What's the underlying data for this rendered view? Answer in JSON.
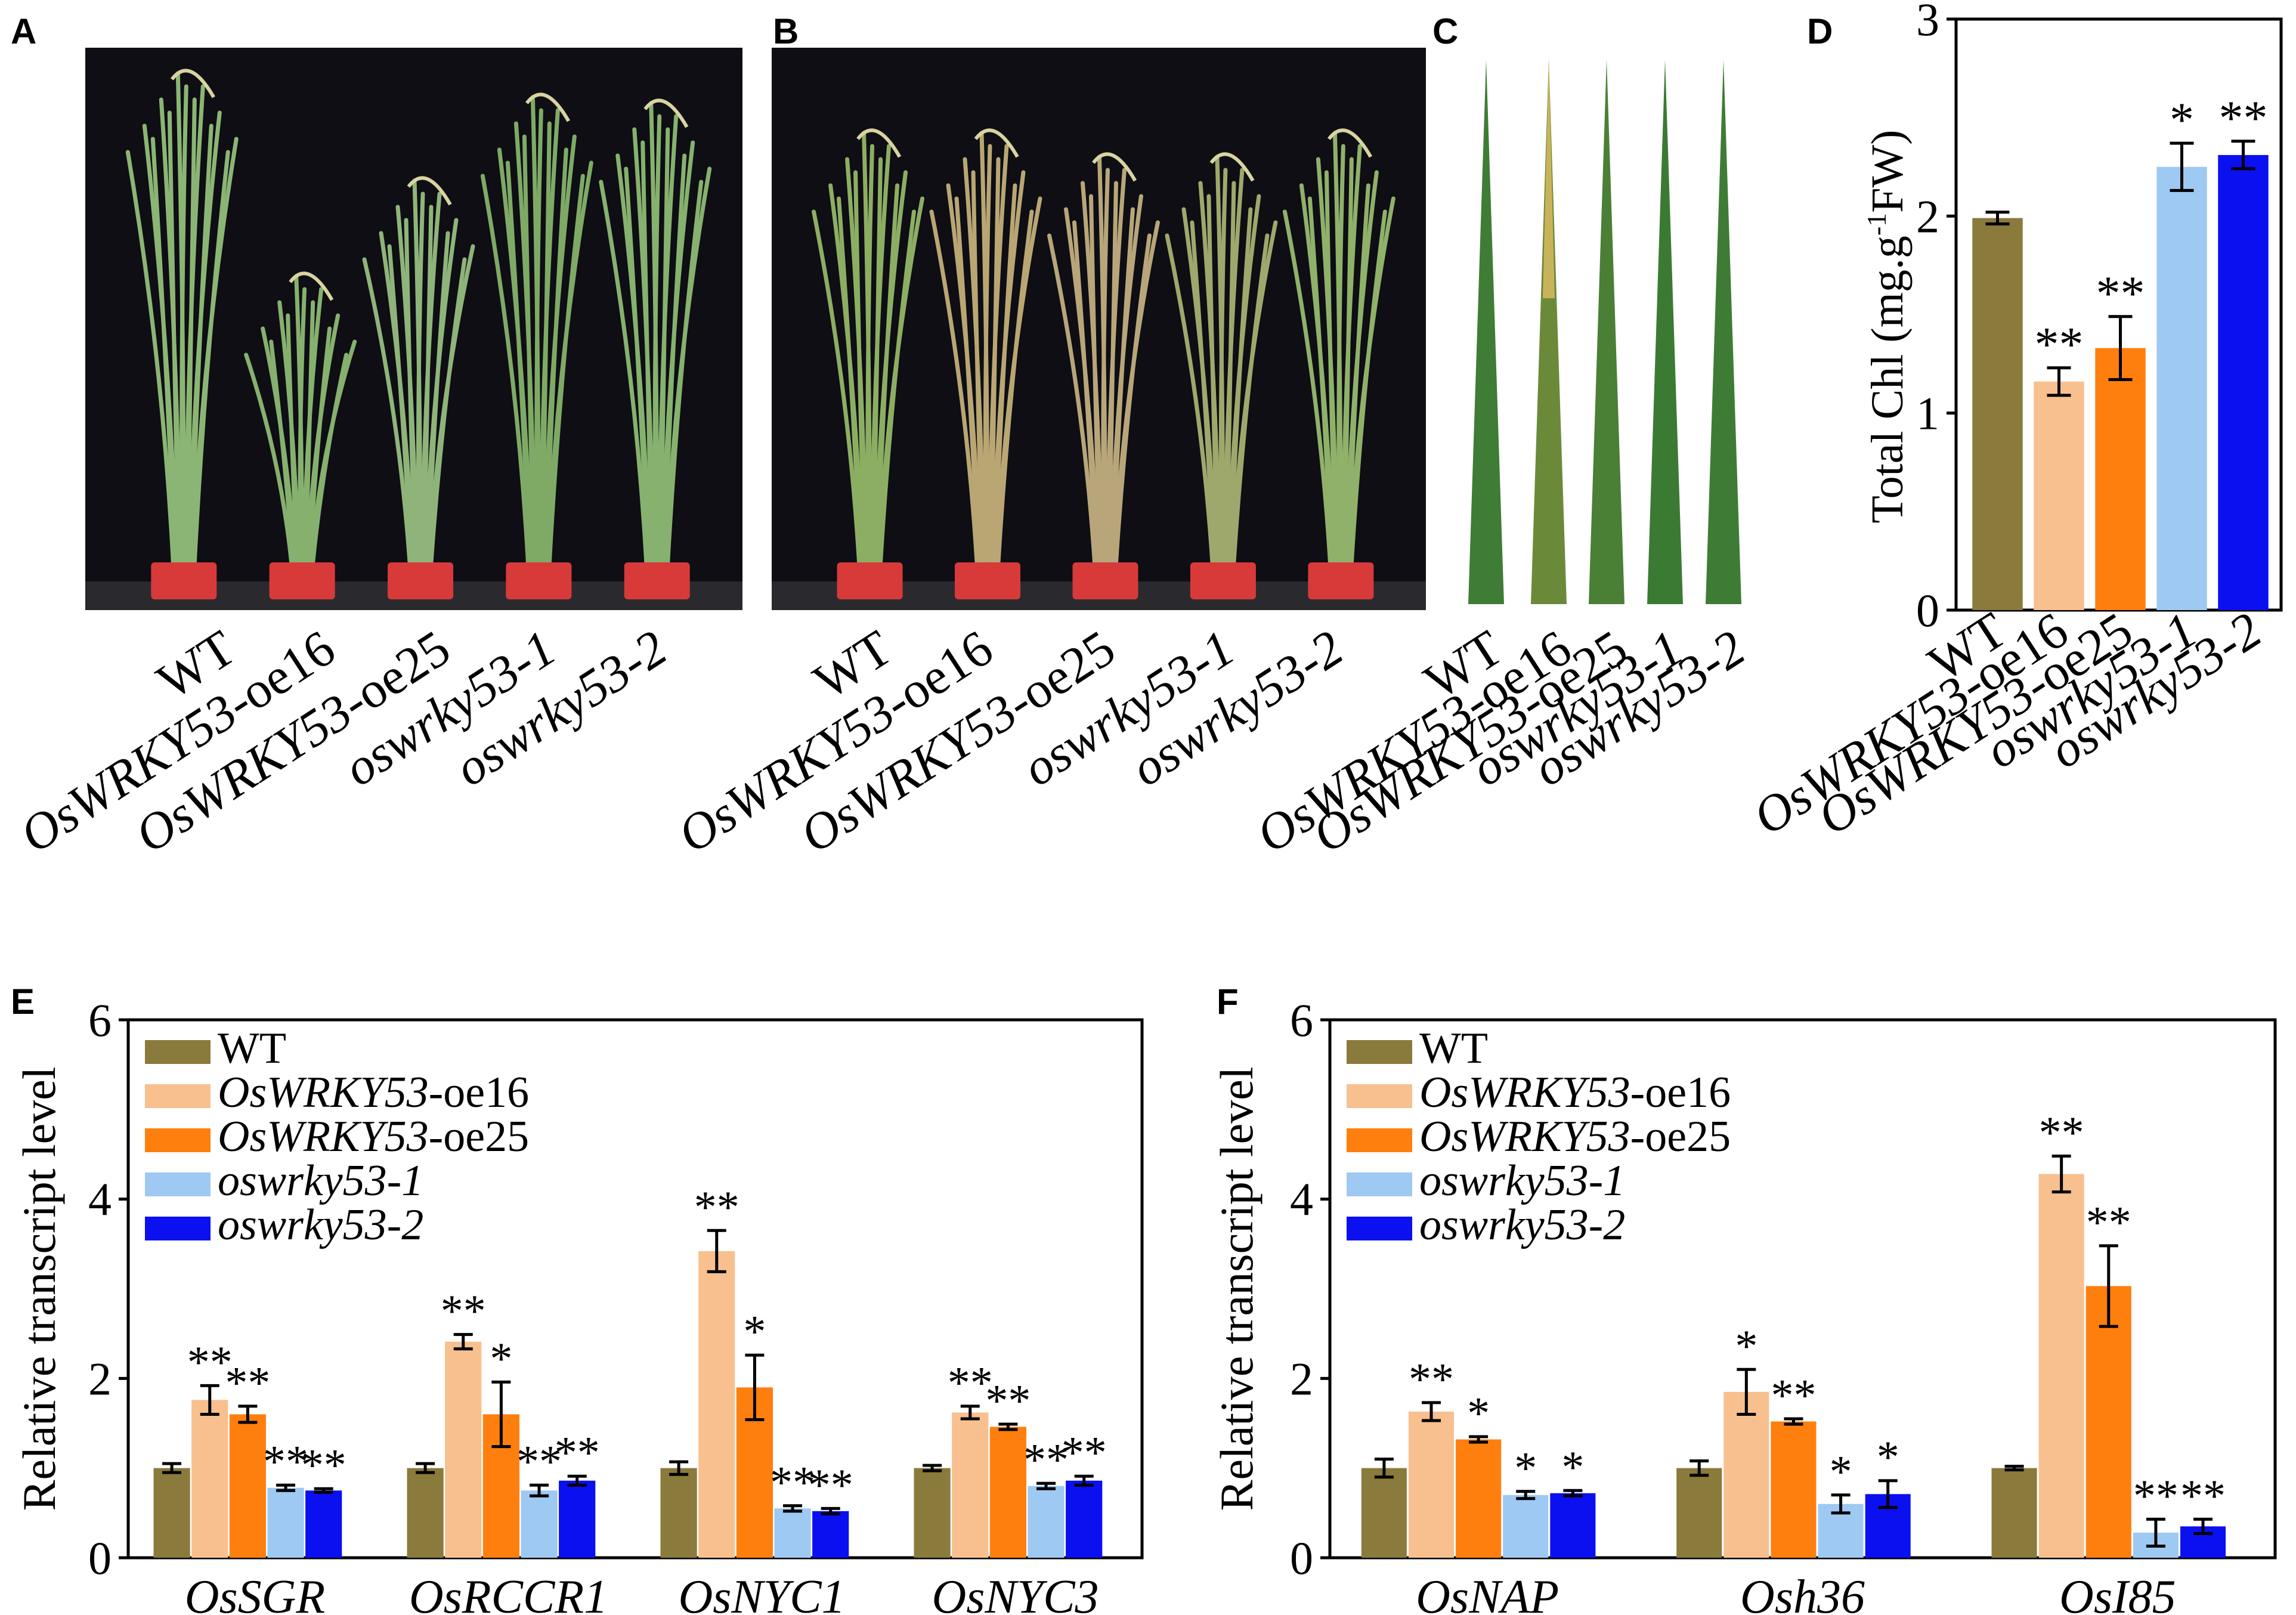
{
  "panels": {
    "A": {
      "letter": "A",
      "labels": [
        {
          "pre": "",
          "ital": "",
          "post": "WT"
        },
        {
          "pre": "",
          "ital": "OsWRKY53",
          "post": "-oe16"
        },
        {
          "pre": "",
          "ital": "OsWRKY53",
          "post": "-oe25"
        },
        {
          "pre": "",
          "ital": "oswrky53-1",
          "post": ""
        },
        {
          "pre": "",
          "ital": "oswrky53-2",
          "post": ""
        }
      ]
    },
    "B": {
      "letter": "B",
      "labels": [
        {
          "pre": "",
          "ital": "",
          "post": "WT"
        },
        {
          "pre": "",
          "ital": "OsWRKY53",
          "post": "-oe16"
        },
        {
          "pre": "",
          "ital": "OsWRKY53",
          "post": "-oe25"
        },
        {
          "pre": "",
          "ital": "oswrky53-1",
          "post": ""
        },
        {
          "pre": "",
          "ital": "oswrky53-2",
          "post": ""
        }
      ]
    },
    "C": {
      "letter": "C",
      "labels": [
        {
          "pre": "",
          "ital": "",
          "post": "WT"
        },
        {
          "pre": "",
          "ital": "OsWRKY53",
          "post": "-oe16"
        },
        {
          "pre": "",
          "ital": "OsWRKY53",
          "post": "-oe25"
        },
        {
          "pre": "",
          "ital": "oswrky53-1",
          "post": ""
        },
        {
          "pre": "",
          "ital": "oswrky53-2",
          "post": ""
        }
      ]
    },
    "D": {
      "letter": "D"
    },
    "E": {
      "letter": "E"
    },
    "F": {
      "letter": "F"
    }
  },
  "colors": {
    "WT": "#8a7a3c",
    "oe16": "#f8c08f",
    "oe25": "#ff7f0e",
    "ko1": "#9ec9f3",
    "ko2": "#0a10f0",
    "photo_bg": "#0e0e14",
    "pot": "#d83a3a",
    "plant": "#7aa25f",
    "leaf": "#3f7a2e"
  },
  "chart_data": [
    {
      "id": "D",
      "type": "bar",
      "ylabel": "Total Chl (mg.g-1FW)",
      "ylabel_parts": {
        "a": "Total Chl (mg.g",
        "sup": "-1",
        "b": "FW)"
      },
      "ylim": [
        0,
        3
      ],
      "yticks": [
        "0",
        "1",
        "2",
        "3"
      ],
      "categories": [
        {
          "pre": "",
          "ital": "",
          "post": "WT"
        },
        {
          "pre": "",
          "ital": "OsWRKY53",
          "post": "-oe16"
        },
        {
          "pre": "",
          "ital": "OsWRKY53",
          "post": "-oe25"
        },
        {
          "pre": "",
          "ital": "oswrky53-1",
          "post": ""
        },
        {
          "pre": "",
          "ital": "oswrky53-2",
          "post": ""
        }
      ],
      "values": [
        1.99,
        1.16,
        1.33,
        2.25,
        2.31
      ],
      "errors": [
        0.03,
        0.07,
        0.16,
        0.12,
        0.07
      ],
      "signif": [
        "",
        "**",
        "**",
        "*",
        "**"
      ],
      "color_keys": [
        "WT",
        "oe16",
        "oe25",
        "ko1",
        "ko2"
      ]
    },
    {
      "id": "E",
      "type": "bar",
      "ylabel": "Relative transcript level",
      "ylim": [
        0,
        6
      ],
      "yticks": [
        "0",
        "2",
        "4",
        "6"
      ],
      "categories": [
        "OsSGR",
        "OsRCCR1",
        "OsNYC1",
        "OsNYC3"
      ],
      "legend": [
        {
          "ital": "",
          "post": "WT",
          "allital": false
        },
        {
          "ital": "OsWRKY53",
          "post": "-oe16",
          "allital": false
        },
        {
          "ital": "OsWRKY53",
          "post": "-oe25",
          "allital": false
        },
        {
          "ital": "oswrky53-1",
          "post": "",
          "allital": true
        },
        {
          "ital": "oswrky53-2",
          "post": "",
          "allital": true
        }
      ],
      "series": [
        {
          "name": "WT",
          "values": [
            1.0,
            1.0,
            1.0,
            1.0
          ],
          "errors": [
            0.05,
            0.05,
            0.07,
            0.03
          ],
          "signif": [
            "",
            "",
            "",
            ""
          ]
        },
        {
          "name": "OsWRKY53-oe16",
          "values": [
            1.76,
            2.41,
            3.42,
            1.62
          ],
          "errors": [
            0.16,
            0.08,
            0.23,
            0.07
          ],
          "signif": [
            "**",
            "**",
            "**",
            "**"
          ]
        },
        {
          "name": "OsWRKY53-oe25",
          "values": [
            1.6,
            1.6,
            1.9,
            1.46
          ],
          "errors": [
            0.09,
            0.36,
            0.36,
            0.03
          ],
          "signif": [
            "**",
            "*",
            "*",
            "**"
          ]
        },
        {
          "name": "oswrky53-1",
          "values": [
            0.78,
            0.75,
            0.55,
            0.8
          ],
          "errors": [
            0.03,
            0.06,
            0.03,
            0.03
          ],
          "signif": [
            "**",
            "**",
            "**",
            "**"
          ]
        },
        {
          "name": "oswrky53-2",
          "values": [
            0.75,
            0.86,
            0.52,
            0.86
          ],
          "errors": [
            0.02,
            0.05,
            0.03,
            0.05
          ],
          "signif": [
            "**",
            "**",
            "**",
            "**"
          ]
        }
      ]
    },
    {
      "id": "F",
      "type": "bar",
      "ylabel": "Relative transcript level",
      "ylim": [
        0,
        6
      ],
      "yticks": [
        "0",
        "2",
        "4",
        "6"
      ],
      "categories": [
        "OsNAP",
        "Osh36",
        "OsI85"
      ],
      "legend": [
        {
          "ital": "",
          "post": "WT",
          "allital": false
        },
        {
          "ital": "OsWRKY53",
          "post": "-oe16",
          "allital": false
        },
        {
          "ital": "OsWRKY53",
          "post": "-oe25",
          "allital": false
        },
        {
          "ital": "oswrky53-1",
          "post": "",
          "allital": true
        },
        {
          "ital": "oswrky53-2",
          "post": "",
          "allital": true
        }
      ],
      "series": [
        {
          "name": "WT",
          "values": [
            1.0,
            1.0,
            1.0
          ],
          "errors": [
            0.1,
            0.08,
            0.02
          ],
          "signif": [
            "",
            "",
            ""
          ]
        },
        {
          "name": "OsWRKY53-oe16",
          "values": [
            1.63,
            1.85,
            4.28
          ],
          "errors": [
            0.1,
            0.25,
            0.2
          ],
          "signif": [
            "**",
            "*",
            "**"
          ]
        },
        {
          "name": "OsWRKY53-oe25",
          "values": [
            1.32,
            1.52,
            3.03
          ],
          "errors": [
            0.03,
            0.03,
            0.45
          ],
          "signif": [
            "*",
            "**",
            "**"
          ]
        },
        {
          "name": "oswrky53-1",
          "values": [
            0.7,
            0.6,
            0.28
          ],
          "errors": [
            0.04,
            0.1,
            0.15
          ],
          "signif": [
            "*",
            "*",
            "**"
          ]
        },
        {
          "name": "oswrky53-2",
          "values": [
            0.72,
            0.71,
            0.35
          ],
          "errors": [
            0.03,
            0.15,
            0.08
          ],
          "signif": [
            "*",
            "*",
            "**"
          ]
        }
      ]
    }
  ]
}
